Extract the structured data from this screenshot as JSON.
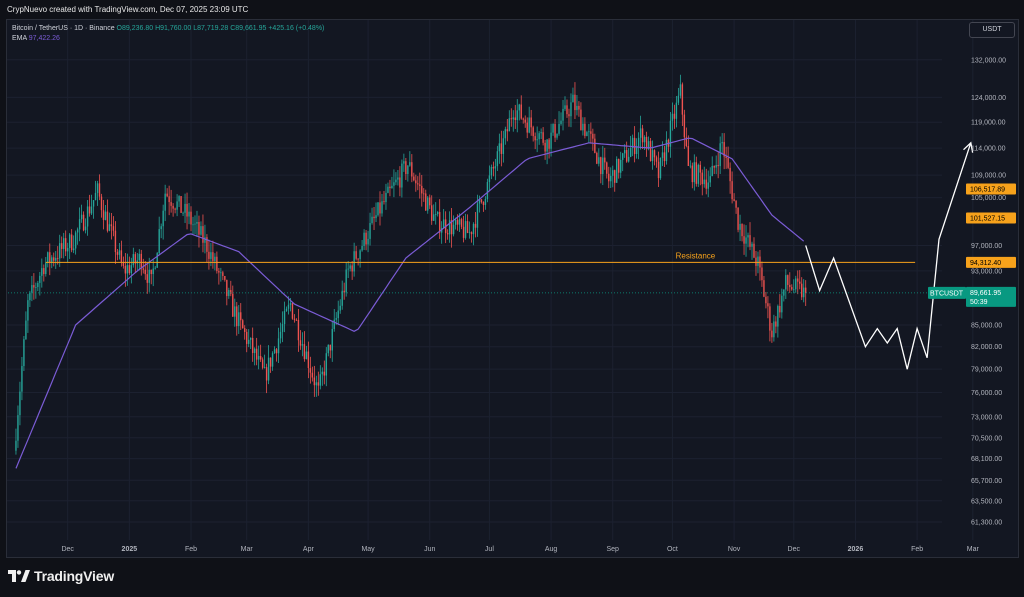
{
  "header": {
    "credit": "CrypNuevo created with TradingView.com, Dec 07, 2025 23:09 UTC"
  },
  "legend": {
    "symbol": "Bitcoin / TetherUS · 1D · Binance",
    "ohlc": "O89,236.80  H91,760.00  L87,719.28  C89,661.95  +425.16 (+0.48%)",
    "ema_label": "EMA",
    "ema_value": "97,422.26"
  },
  "currency_button": "USDT",
  "footer": {
    "brand": "TradingView"
  },
  "colors": {
    "background": "#131722",
    "up": "#26a69a",
    "down": "#ef5350",
    "ema": "#7b5cd6",
    "resistance": "#f7a21b",
    "projection": "#ffffff"
  },
  "chart_data": {
    "type": "candlestick",
    "x_labels": [
      "Dec",
      "2025",
      "Feb",
      "Mar",
      "Apr",
      "May",
      "Jun",
      "Jul",
      "Aug",
      "Sep",
      "Oct",
      "Nov",
      "Dec",
      "2026",
      "Feb",
      "Mar"
    ],
    "y_tick_labels": [
      "132,000.00",
      "124,000.00",
      "119,000.00",
      "114,000.00",
      "109,000.00",
      "105,000.00",
      "97,000.00",
      "93,000.00",
      "85,000.00",
      "82,000.00",
      "79,000.00",
      "76,000.00",
      "73,000.00",
      "70,500.00",
      "68,100.00",
      "65,700.00",
      "63,500.00",
      "61,300.00"
    ],
    "y_scale": "log",
    "ylim": [
      59500,
      141000
    ],
    "price_series": [
      [
        "2024-11-05",
        69000
      ],
      [
        "2024-11-12",
        88000
      ],
      [
        "2024-11-20",
        94000
      ],
      [
        "2024-12-05",
        98000
      ],
      [
        "2024-12-17",
        106000
      ],
      [
        "2024-12-30",
        93000
      ],
      [
        "2025-01-08",
        95000
      ],
      [
        "2025-01-13",
        91000
      ],
      [
        "2025-01-20",
        106000
      ],
      [
        "2025-01-31",
        102000
      ],
      [
        "2025-02-10",
        97000
      ],
      [
        "2025-02-25",
        86000
      ],
      [
        "2025-03-04",
        82000
      ],
      [
        "2025-03-11",
        78000
      ],
      [
        "2025-03-24",
        88000
      ],
      [
        "2025-04-07",
        76000
      ],
      [
        "2025-04-22",
        93000
      ],
      [
        "2025-05-08",
        103000
      ],
      [
        "2025-05-22",
        111000
      ],
      [
        "2025-06-05",
        101000
      ],
      [
        "2025-06-22",
        99000
      ],
      [
        "2025-07-10",
        116000
      ],
      [
        "2025-07-14",
        122000
      ],
      [
        "2025-07-31",
        115000
      ],
      [
        "2025-08-13",
        123000
      ],
      [
        "2025-08-31",
        108000
      ],
      [
        "2025-09-17",
        117000
      ],
      [
        "2025-09-25",
        109000
      ],
      [
        "2025-10-06",
        125000
      ],
      [
        "2025-10-10",
        110000
      ],
      [
        "2025-10-21",
        108000
      ],
      [
        "2025-10-27",
        115000
      ],
      [
        "2025-11-04",
        101000
      ],
      [
        "2025-11-14",
        94000
      ],
      [
        "2025-11-21",
        84000
      ],
      [
        "2025-11-28",
        91000
      ],
      [
        "2025-12-07",
        89662
      ]
    ],
    "ema_series": [
      [
        "2024-11-05",
        67000
      ],
      [
        "2024-12-05",
        85000
      ],
      [
        "2025-01-05",
        93000
      ],
      [
        "2025-01-31",
        99000
      ],
      [
        "2025-02-25",
        96000
      ],
      [
        "2025-03-25",
        88000
      ],
      [
        "2025-04-25",
        84000
      ],
      [
        "2025-05-20",
        95000
      ],
      [
        "2025-06-20",
        103000
      ],
      [
        "2025-07-20",
        112000
      ],
      [
        "2025-08-20",
        115000
      ],
      [
        "2025-09-20",
        114000
      ],
      [
        "2025-10-10",
        116000
      ],
      [
        "2025-10-31",
        112000
      ],
      [
        "2025-11-20",
        102000
      ],
      [
        "2025-12-07",
        97422
      ]
    ],
    "projection_path": [
      [
        "2025-12-07",
        97000
      ],
      [
        "2025-12-14",
        90000
      ],
      [
        "2025-12-21",
        95000
      ],
      [
        "2026-01-06",
        82000
      ],
      [
        "2026-01-12",
        84500
      ],
      [
        "2026-01-17",
        82500
      ],
      [
        "2026-01-22",
        84500
      ],
      [
        "2026-01-27",
        79000
      ],
      [
        "2026-02-01",
        84500
      ],
      [
        "2026-02-06",
        80500
      ],
      [
        "2026-02-12",
        98000
      ],
      [
        "2026-02-28",
        115000
      ]
    ],
    "resistance": {
      "label": "Resistance",
      "value": 94312.4,
      "from": "2024-11-20",
      "to": "2026-01-31"
    },
    "price_tags": [
      {
        "label": "106,517.89",
        "value": 106517.89,
        "color": "#f7a21b",
        "text_color": "#000000"
      },
      {
        "label": "101,527.15",
        "value": 101527.15,
        "color": "#f7a21b",
        "text_color": "#000000"
      },
      {
        "label": "94,312.40",
        "value": 94312.4,
        "color": "#f7a21b",
        "text_color": "#000000"
      }
    ],
    "current_price": {
      "symbol": "BTCUSDT",
      "label": "89,661.95",
      "countdown": "50:39",
      "value": 89661.95,
      "color": "#089981"
    }
  }
}
